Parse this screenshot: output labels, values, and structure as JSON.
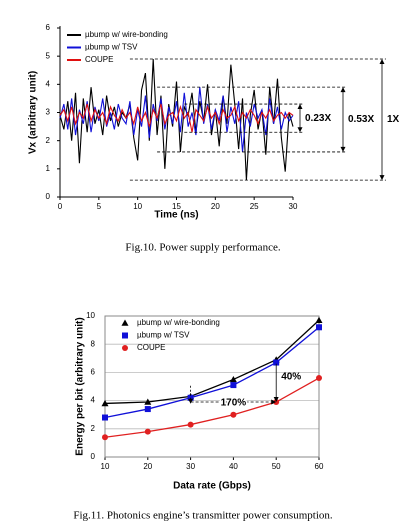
{
  "chart_data": [
    {
      "type": "line",
      "caption": "Fig.10. Power supply performance.",
      "x_label": "Time (ns)",
      "y_label": "Vx (arbitrary unit)",
      "x": [
        0,
        0.5,
        1,
        1.5,
        2,
        2.5,
        3,
        3.5,
        4,
        4.5,
        5,
        5.5,
        6,
        6.5,
        7,
        7.5,
        8,
        8.5,
        9,
        9.5,
        10,
        10.5,
        11,
        11.5,
        12,
        12.5,
        13,
        13.5,
        14,
        14.5,
        15,
        15.5,
        16,
        16.5,
        17,
        17.5,
        18,
        18.5,
        19,
        19.5,
        20,
        20.5,
        21,
        21.5,
        22,
        22.5,
        23,
        23.5,
        24,
        24.5,
        25,
        25.5,
        26,
        26.5,
        27,
        27.5,
        28,
        28.5,
        29,
        29.5,
        30
      ],
      "series": [
        {
          "name": "µbump w/ wire-bonding",
          "color": "#000000",
          "annotation": "1X",
          "values": [
            2.9,
            2.4,
            3.4,
            2.0,
            3.7,
            1.2,
            3.5,
            2.3,
            3.9,
            2.6,
            3.1,
            2.2,
            3.6,
            2.7,
            3.2,
            2.5,
            3.0,
            2.8,
            3.3,
            2.1,
            1.3,
            3.8,
            4.4,
            2.0,
            4.9,
            2.2,
            3.6,
            1.0,
            3.3,
            2.5,
            4.1,
            1.6,
            3.2,
            2.9,
            3.7,
            2.3,
            3.4,
            2.7,
            4.0,
            2.2,
            3.1,
            1.8,
            3.6,
            2.6,
            4.7,
            3.3,
            1.7,
            3.5,
            0.6,
            2.9,
            3.8,
            2.4,
            3.1,
            1.5,
            3.9,
            2.6,
            4.2,
            2.1,
            0.9,
            3.0,
            2.5
          ]
        },
        {
          "name": "µbump w/ TSV",
          "color": "#1010d8",
          "annotation": "0.53X",
          "values": [
            2.8,
            3.3,
            2.4,
            3.5,
            2.2,
            3.1,
            2.6,
            3.4,
            2.3,
            3.2,
            2.7,
            3.5,
            2.5,
            3.0,
            2.4,
            3.3,
            2.8,
            2.6,
            3.4,
            2.2,
            3.1,
            2.5,
            3.6,
            2.1,
            3.3,
            2.7,
            3.5,
            2.4,
            3.2,
            2.6,
            3.4,
            2.3,
            3.7,
            2.5,
            3.0,
            2.2,
            3.9,
            2.6,
            3.3,
            2.4,
            3.1,
            2.7,
            3.6,
            2.3,
            3.2,
            2.6,
            3.4,
            1.6,
            3.0,
            2.5,
            3.3,
            2.8,
            3.1,
            2.2,
            3.5,
            2.6,
            3.2,
            2.4,
            3.0,
            2.7,
            2.9
          ]
        },
        {
          "name": "COUPE",
          "color": "#e01010",
          "annotation": "0.23X",
          "values": [
            2.9,
            3.1,
            2.7,
            3.2,
            2.6,
            3.0,
            2.8,
            3.3,
            2.7,
            3.1,
            2.8,
            3.0,
            2.6,
            3.2,
            2.9,
            2.7,
            3.1,
            2.8,
            3.0,
            2.6,
            3.2,
            2.7,
            3.0,
            2.5,
            3.1,
            2.8,
            3.3,
            2.6,
            2.9,
            3.0,
            2.7,
            3.2,
            2.8,
            3.0,
            2.3,
            3.1,
            2.9,
            2.7,
            3.2,
            2.8,
            3.0,
            2.6,
            3.1,
            2.8,
            2.9,
            3.2,
            2.7,
            3.0,
            2.8,
            3.1,
            2.9,
            2.6,
            3.0,
            2.8,
            3.1,
            2.7,
            2.9,
            3.0,
            2.8,
            3.0,
            2.9
          ]
        }
      ],
      "xlim": [
        0,
        30
      ],
      "xticks": [
        0,
        5,
        10,
        15,
        20,
        25,
        30
      ],
      "ylim": [
        0,
        6
      ],
      "yticks": [
        0,
        1,
        2,
        3,
        4,
        5,
        6
      ],
      "grid": false,
      "legend": "upper left"
    },
    {
      "type": "line",
      "caption": "Fig.11. Photonics engine’s transmitter power consumption.",
      "x_label": "Data rate (Gbps)",
      "y_label": "Energy per bit (arbitrary unit)",
      "x": [
        10,
        20,
        30,
        40,
        50,
        60
      ],
      "series": [
        {
          "name": "µbump w/ wire-bonding",
          "color": "#000000",
          "marker": "triangle",
          "values": [
            3.8,
            3.9,
            4.3,
            5.5,
            6.9,
            9.7
          ]
        },
        {
          "name": "µbump w/ TSV",
          "color": "#1010d8",
          "marker": "square",
          "values": [
            2.8,
            3.4,
            4.2,
            5.1,
            6.7,
            9.2
          ]
        },
        {
          "name": "COUPE",
          "color": "#e02020",
          "marker": "circle",
          "values": [
            1.4,
            1.8,
            2.3,
            3.0,
            3.9,
            5.6
          ]
        }
      ],
      "annotations": [
        "170%",
        "40%"
      ],
      "xlim": [
        10,
        60
      ],
      "xticks": [
        10,
        20,
        30,
        40,
        50,
        60
      ],
      "ylim": [
        0,
        10
      ],
      "yticks": [
        0,
        2,
        4,
        6,
        8,
        10
      ],
      "grid": true,
      "legend": "upper left"
    }
  ]
}
